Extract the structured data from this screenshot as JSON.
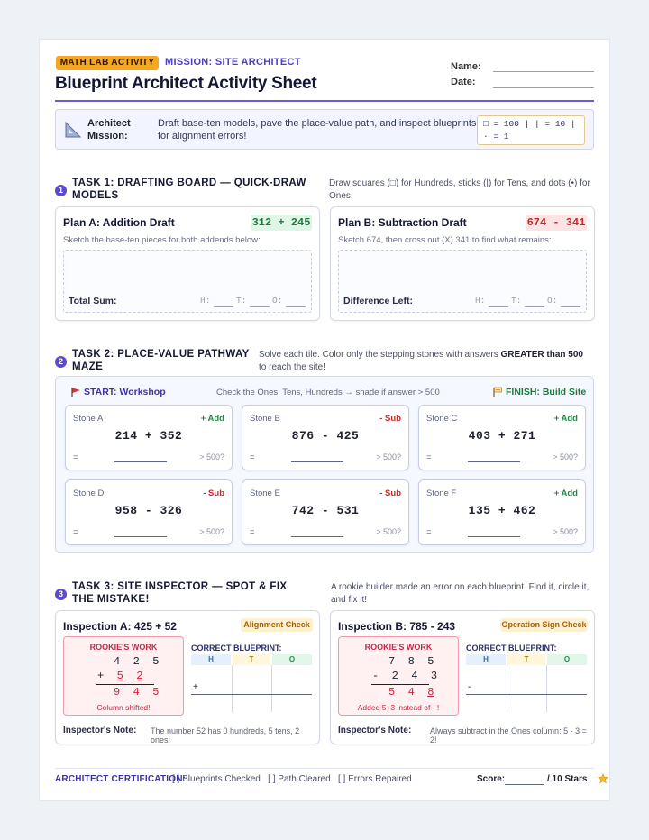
{
  "header": {
    "badge": "MATH LAB ACTIVITY",
    "mission": "MISSION: SITE ARCHITECT",
    "title": "Blueprint Architect Activity Sheet",
    "name_label": "Name:",
    "date_label": "Date:"
  },
  "mission_box": {
    "label": "Architect Mission:",
    "text": "Draft base-ten models, pave the place-value path, and inspect blueprints for alignment errors!",
    "key_line1": "□ = 100 | | = 10 |",
    "key_line2": "· = 1"
  },
  "task1": {
    "number": "1",
    "title": "TASK 1: DRAFTING BOARD — QUICK-DRAW MODELS",
    "note": "Draw squares (□) for Hundreds, sticks (|) for Tens, and dots (•) for Ones.",
    "plan_a": {
      "title": "Plan A: Addition Draft",
      "equation": "312 + 245",
      "subtitle": "Sketch the base-ten pieces for both addends below:",
      "result_label": "Total Sum:"
    },
    "plan_b": {
      "title": "Plan B: Subtraction Draft",
      "equation": "674 - 341",
      "subtitle": "Sketch 674, then cross out (X) 341 to find what remains:",
      "result_label": "Difference Left:"
    },
    "h_label": "H:",
    "t_label": "T:",
    "o_label": "O:"
  },
  "task2": {
    "number": "2",
    "title": "TASK 2: PLACE-VALUE PATHWAY MAZE",
    "note_pre": "Solve each tile. Color only the stepping stones with answers ",
    "note_bold": "GREATER than 500",
    "note_post": " to reach the site!",
    "start": "START: Workshop",
    "instruction": "Check the Ones, Tens, Hundreds → shade if answer > 500",
    "finish": "FINISH: Build Site",
    "equals": "=",
    "check": "> 500?",
    "stones": [
      {
        "name": "Stone A",
        "op": "+ Add",
        "problem": "214 + 352"
      },
      {
        "name": "Stone B",
        "op": "- Sub",
        "problem": "876 - 425"
      },
      {
        "name": "Stone C",
        "op": "+ Add",
        "problem": "403 + 271"
      },
      {
        "name": "Stone D",
        "op": "- Sub",
        "problem": "958 - 326"
      },
      {
        "name": "Stone E",
        "op": "- Sub",
        "problem": "742 - 531"
      },
      {
        "name": "Stone F",
        "op": "+ Add",
        "problem": "135 + 462"
      }
    ]
  },
  "task3": {
    "number": "3",
    "title": "TASK 3: SITE INSPECTOR — SPOT & FIX THE MISTAKE!",
    "note": "A rookie builder made an error on each blueprint. Find it, circle it, and fix it!",
    "rookie_label": "ROOKIE'S WORK",
    "correct_label": "CORRECT BLUEPRINT:",
    "col_h": "H",
    "col_t": "T",
    "col_o": "O",
    "note_label": "Inspector's Note:",
    "a": {
      "title": "Inspection A: 425 + 52",
      "tag": "Alignment Check",
      "row1": [
        "4",
        "2",
        "5"
      ],
      "op": "+",
      "row2": [
        "5",
        "2"
      ],
      "result": [
        "9",
        "4",
        "5"
      ],
      "error": "Column shifted!",
      "note": "The number 52 has 0 hundreds, 5 tens, 2 ones!"
    },
    "b": {
      "title": "Inspection B: 785 - 243",
      "tag": "Operation Sign Check",
      "row1": [
        "7",
        "8",
        "5"
      ],
      "op": "-",
      "row2": [
        "2",
        "4",
        "3"
      ],
      "result": [
        "5",
        "4",
        "8"
      ],
      "error": "Added 5+3 instead of - !",
      "note": "Always subtract in the Ones column: 5 - 3 = 2!"
    }
  },
  "footer": {
    "certification": "ARCHITECT CERTIFICATION:",
    "checks": "[ ] Blueprints Checked   [ ] Path Cleared   [ ] Errors Repaired",
    "score_label": "Score:",
    "score_max": "/ 10 Stars"
  },
  "colors": {
    "accent": "#5a4bd1",
    "badge": "#f5a623",
    "add": "#1f8a46",
    "sub": "#c42b2b"
  },
  "icons": {
    "mission": "triangle-ruler-icon",
    "start": "red-flag-icon",
    "finish": "construction-sign-icon",
    "score": "star-icon"
  }
}
